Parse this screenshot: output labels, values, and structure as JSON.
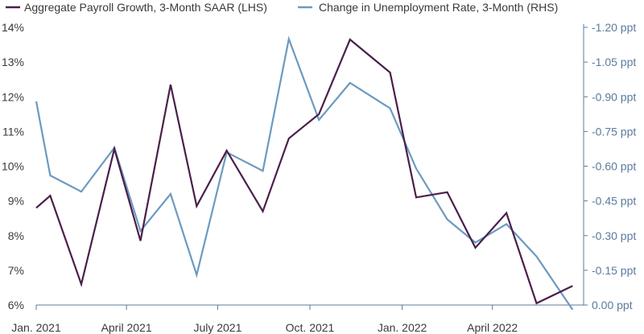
{
  "chart_data": {
    "type": "line",
    "title": "",
    "xlabel": "",
    "ylabel": "",
    "x": [
      "2021-01",
      "2021-02",
      "2021-03",
      "2021-04",
      "2021-05",
      "2021-06",
      "2021-07",
      "2021-08",
      "2021-09",
      "2021-10",
      "2021-11",
      "2021-12",
      "2022-01",
      "2022-02",
      "2022-03",
      "2022-04",
      "2022-05",
      "2022-06"
    ],
    "x_ticks": [
      "Jan. 2021",
      "April 2021",
      "July 2021",
      "Oct. 2021",
      "Jan. 2022",
      "April 2022"
    ],
    "x_tick_positions": [
      "2021-01",
      "2021-04",
      "2021-07",
      "2021-10",
      "2022-01",
      "2022-04"
    ],
    "series": [
      {
        "name": "Aggregate Payroll Growth, 3-Month SAAR (LHS)",
        "axis": "left",
        "color": "#4a1f4a",
        "points": [
          [
            "2021-01-01",
            8.8
          ],
          [
            "2021-01-15",
            9.15
          ],
          [
            "2021-02-15",
            6.6
          ],
          [
            "2021-03-20",
            10.5
          ],
          [
            "2021-04-15",
            7.85
          ],
          [
            "2021-05-15",
            12.35
          ],
          [
            "2021-06-10",
            8.85
          ],
          [
            "2021-07-10",
            10.45
          ],
          [
            "2021-08-15",
            8.7
          ],
          [
            "2021-09-10",
            10.8
          ],
          [
            "2021-10-10",
            11.5
          ],
          [
            "2021-11-10",
            13.65
          ],
          [
            "2021-12-20",
            12.7
          ],
          [
            "2022-01-15",
            9.1
          ],
          [
            "2022-02-15",
            9.25
          ],
          [
            "2022-03-15",
            7.65
          ],
          [
            "2022-04-15",
            8.65
          ],
          [
            "2022-05-15",
            6.05
          ],
          [
            "2022-06-20",
            6.55
          ]
        ]
      },
      {
        "name": "Change in Unemployment Rate, 3-Month (RHS)",
        "axis": "right",
        "color": "#6c9ac0",
        "points": [
          [
            "2021-01-01",
            -0.88
          ],
          [
            "2021-01-15",
            -0.56
          ],
          [
            "2021-02-15",
            -0.49
          ],
          [
            "2021-03-20",
            -0.68
          ],
          [
            "2021-04-15",
            -0.32
          ],
          [
            "2021-05-15",
            -0.48
          ],
          [
            "2021-06-10",
            -0.13
          ],
          [
            "2021-07-10",
            -0.66
          ],
          [
            "2021-08-15",
            -0.58
          ],
          [
            "2021-09-10",
            -1.15
          ],
          [
            "2021-10-10",
            -0.8
          ],
          [
            "2021-11-10",
            -0.96
          ],
          [
            "2021-12-20",
            -0.85
          ],
          [
            "2022-01-15",
            -0.59
          ],
          [
            "2022-02-15",
            -0.37
          ],
          [
            "2022-03-15",
            -0.27
          ],
          [
            "2022-04-15",
            -0.35
          ],
          [
            "2022-05-15",
            -0.21
          ],
          [
            "2022-06-20",
            0.02
          ]
        ]
      }
    ],
    "y_left": {
      "ylim": [
        6,
        14
      ],
      "ticks": [
        14,
        13,
        12,
        11,
        10,
        9,
        8,
        7,
        6
      ],
      "tick_labels": [
        "14%",
        "13%",
        "12%",
        "11%",
        "10%",
        "9%",
        "8%",
        "7%",
        "6%"
      ]
    },
    "y_right": {
      "ylim": [
        0.0,
        -1.2
      ],
      "inverted": true,
      "ticks": [
        -1.2,
        -1.05,
        -0.9,
        -0.75,
        -0.6,
        -0.45,
        -0.3,
        -0.15,
        0.0
      ],
      "tick_labels": [
        "-1.20 ppt",
        "-1.05 ppt",
        "-0.90 ppt",
        "-0.75 ppt",
        "-0.60 ppt",
        "-0.45 ppt",
        "-0.30 ppt",
        "-0.15 ppt",
        "0.00 ppt"
      ]
    },
    "grid": false,
    "legend_position": "top-left",
    "colors": {
      "axis": "#5b7b9c",
      "right_tick_text": "#5b7b9c",
      "text": "#3a3a3a"
    }
  }
}
